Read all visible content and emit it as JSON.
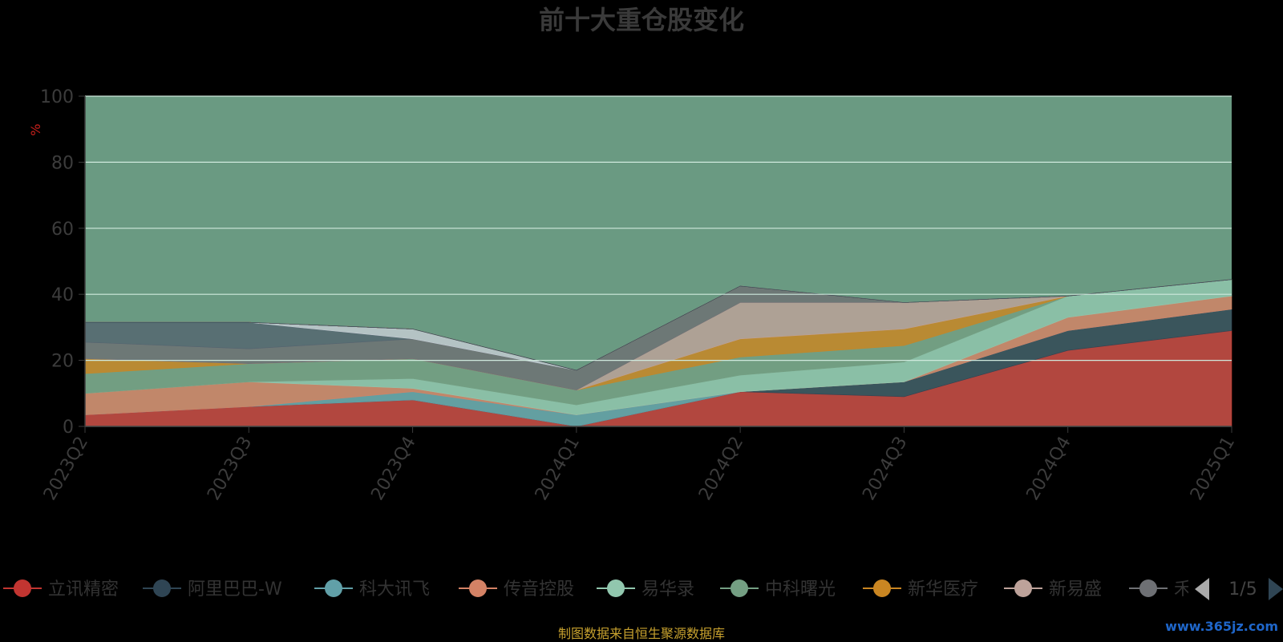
{
  "chart_data": {
    "type": "area",
    "stacked": true,
    "title": "前十大重仓股变化",
    "ylabel": "%",
    "ylim": [
      0,
      100
    ],
    "y_ticks": [
      "0",
      "20",
      "40",
      "60",
      "80",
      "100"
    ],
    "categories": [
      "2023Q2",
      "2023Q3",
      "2023Q4",
      "2024Q1",
      "2024Q2",
      "2024Q3",
      "2024Q4",
      "2025Q1"
    ],
    "grid": true,
    "legend_position": "bottom",
    "series": [
      {
        "name": "立讯精密",
        "color": "#c23531",
        "values": [
          3.5,
          6,
          8,
          0,
          10.5,
          9,
          23,
          29
        ]
      },
      {
        "name": "阿里巴巴-W",
        "color": "#2f4554",
        "values": [
          0,
          0,
          0,
          0,
          0,
          4.5,
          6,
          6.5
        ]
      },
      {
        "name": "科大讯飞",
        "color": "#61a0a8",
        "values": [
          0,
          0,
          2.5,
          3.5,
          0,
          0,
          0,
          0
        ]
      },
      {
        "name": "传音控股",
        "color": "#d48265",
        "values": [
          6.5,
          7.5,
          1,
          0,
          0,
          0,
          4,
          4
        ]
      },
      {
        "name": "易华录",
        "color": "#91c7ae",
        "values": [
          0,
          0,
          3,
          3,
          5,
          6,
          6.5,
          5
        ]
      },
      {
        "name": "中科曙光",
        "color": "#749f83",
        "values": [
          6,
          5.5,
          6,
          4.5,
          5.5,
          5,
          0,
          0
        ]
      },
      {
        "name": "新华医疗",
        "color": "#ca8622",
        "values": [
          4.5,
          0,
          0,
          0,
          5.5,
          5,
          0,
          0
        ]
      },
      {
        "name": "新易盛",
        "color": "#bda29a",
        "values": [
          0,
          0,
          0,
          0,
          11,
          8,
          0,
          0
        ]
      },
      {
        "name": "禾",
        "color": "#6e7074",
        "values": [
          5,
          4.5,
          6,
          6,
          5,
          0,
          0,
          0
        ]
      },
      {
        "name": "",
        "color": "#546570",
        "values": [
          6,
          8,
          0,
          0,
          0,
          0,
          0,
          0
        ]
      },
      {
        "name": "",
        "color": "#c4ccd3",
        "values": [
          0,
          0,
          3,
          0,
          0,
          0,
          0,
          0
        ]
      },
      {
        "name": "",
        "color": "#c23531",
        "values": [
          0,
          0,
          0,
          0,
          0,
          0,
          0,
          0
        ]
      },
      {
        "name": "",
        "color": "#2f4554",
        "values": [
          0,
          0,
          0,
          0,
          0,
          0,
          0,
          0
        ]
      },
      {
        "name": "",
        "color": "#61a0a8",
        "values": [
          0,
          0,
          0,
          0,
          0,
          0,
          0,
          0
        ]
      },
      {
        "name": "",
        "color": "#d48265",
        "values": [
          0,
          0,
          0,
          0,
          0,
          0,
          0,
          0
        ]
      },
      {
        "name": "",
        "color": "#ca8622",
        "values": [
          0,
          0,
          0,
          0,
          0,
          0,
          0,
          0
        ]
      },
      {
        "name": "",
        "color": "#546570",
        "values": [
          0,
          0,
          0,
          0,
          0,
          0,
          0,
          0
        ]
      },
      {
        "name": "",
        "color": "#c23531",
        "values": [
          0,
          0,
          0,
          0,
          0,
          0,
          0,
          0
        ]
      },
      {
        "name": "",
        "color": "#2f4554",
        "values": [
          0,
          0,
          0,
          0,
          0,
          0,
          0,
          0
        ]
      },
      {
        "name": "",
        "color": "#6e7074",
        "values": [
          0,
          0,
          0,
          0,
          0,
          0,
          0,
          0
        ]
      },
      {
        "name": "",
        "color": "#91c7ae",
        "values": [
          0,
          0,
          0,
          0,
          0,
          0,
          0,
          0
        ]
      },
      {
        "name": "",
        "color": "#749f83",
        "values": [
          0,
          0,
          0,
          0,
          0,
          0,
          0,
          0
        ]
      },
      {
        "name": "",
        "color": "#ca8622",
        "values": [
          0,
          0,
          0,
          0,
          0,
          0,
          0,
          0
        ]
      },
      {
        "name": "",
        "color": "#bda29a",
        "values": [
          0,
          0,
          0,
          0,
          0,
          0,
          0,
          0
        ]
      },
      {
        "name": "",
        "color": "#61a0a8",
        "values": [
          0,
          0,
          0,
          0,
          0,
          0,
          0,
          0
        ]
      },
      {
        "name": "",
        "color": "#d48265",
        "values": [
          0,
          0,
          0,
          0,
          0,
          0,
          0,
          0
        ]
      },
      {
        "name": "",
        "color": "#546570",
        "values": [
          0,
          0,
          0,
          0,
          0,
          0,
          0,
          0
        ]
      },
      {
        "name": "",
        "color": "#2f4554",
        "values": [
          0,
          0,
          0,
          0,
          0,
          0,
          0,
          0
        ]
      }
    ],
    "remainder_color": "#6a9a82"
  },
  "legend": {
    "page_indicator": "1/5",
    "visible_items": [
      "立讯精密",
      "阿里巴巴-W",
      "科大讯飞",
      "传音控股",
      "易华录",
      "中科曙光",
      "新华医疗",
      "新易盛",
      "禾"
    ]
  },
  "footer": {
    "source_text": "制图数据来自恒生聚源数据库",
    "watermark": "www.365jz.com"
  }
}
